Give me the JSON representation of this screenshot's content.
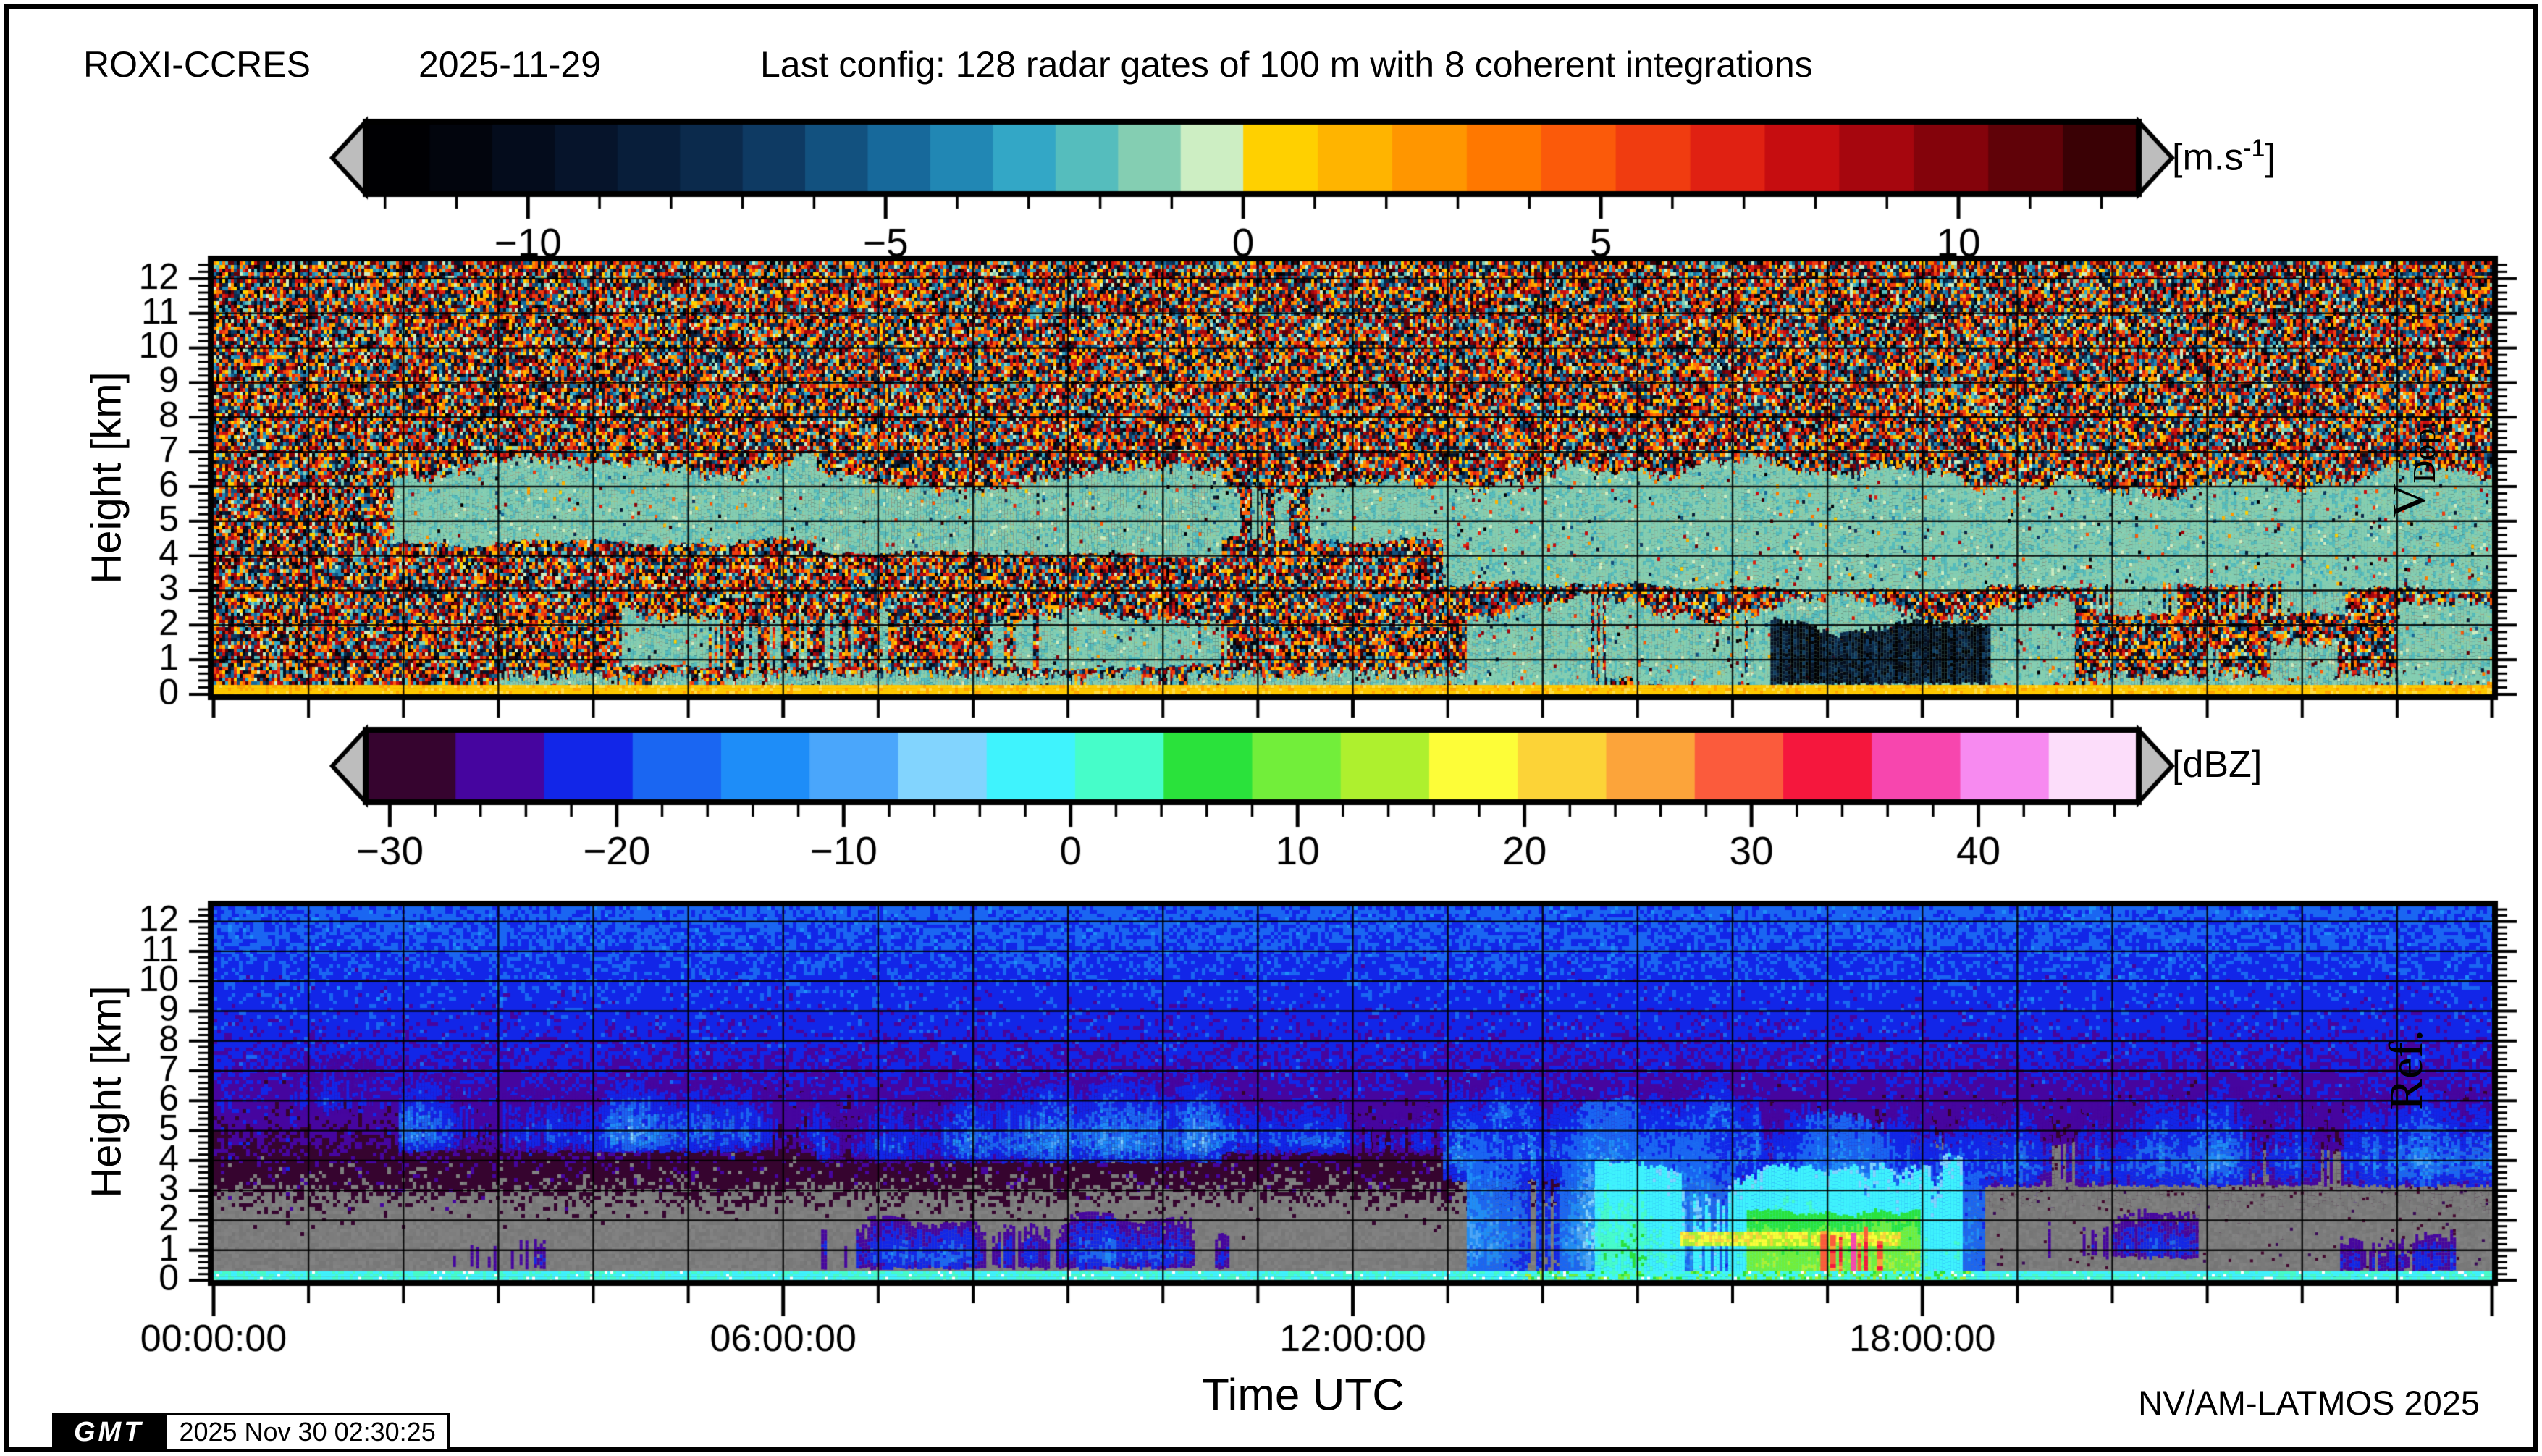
{
  "header": {
    "station": "ROXI-CCRES",
    "date": "2025-11-29",
    "config": "Last config: 128 radar gates of 100 m with 8 coherent integrations"
  },
  "footer": {
    "xlabel": "Time UTC",
    "credit": "NV/AM-LATMOS 2025",
    "logo": "GMT",
    "timestamp": "2025 Nov 30 02:30:25"
  },
  "x_axis": {
    "major_tick_hours": [
      0,
      6,
      12,
      18
    ],
    "tick_labels": [
      "00:00:00",
      "06:00:00",
      "12:00:00",
      "18:00:00"
    ],
    "minor_tick_step_hours": 1,
    "range_hours": [
      0,
      24
    ]
  },
  "chart_data": [
    {
      "type": "heatmap",
      "name": "doppler_velocity",
      "right_label_main": "V",
      "right_label_sub": "Dop.",
      "ylabel": "Height [km]",
      "y_range_km": [
        0,
        12.5
      ],
      "y_major_ticks": [
        0,
        1,
        2,
        3,
        4,
        5,
        6,
        7,
        8,
        9,
        10,
        11,
        12
      ],
      "y_minor_step_km": 0.2,
      "x_grid_step_hours": 1,
      "y_grid_step_km": 1,
      "colorbar": {
        "unit_prefix": "[m.s",
        "unit_sup": "-1",
        "unit_suffix": "]",
        "range": [
          -12.25,
          12.5
        ],
        "major_ticks": [
          -10,
          -5,
          0,
          5,
          10
        ],
        "minor_step": 1,
        "stops_negative": [
          "#000003",
          "#02050d",
          "#040c1c",
          "#06142b",
          "#081e3a",
          "#0b2a4c",
          "#0e3a63",
          "#12517f",
          "#17699b",
          "#2187b4",
          "#33a7c6",
          "#55bdbd",
          "#84ceb2",
          "#cdeec3"
        ],
        "stops_positive": [
          "#ffd000",
          "#ffb400",
          "#ff9600",
          "#ff7800",
          "#fb5a0a",
          "#f03c10",
          "#e02112",
          "#c60d10",
          "#a6060e",
          "#84030b",
          "#600208",
          "#3a0105"
        ]
      },
      "background": "uniform random Doppler noise spanning full velocity range",
      "cloud_velocity_range_ms": [
        -2.0,
        -0.85
      ],
      "surface_strip_color": "#ffc800",
      "features": [
        {
          "kind": "cloud",
          "t": [
            0.75,
            1.7
          ],
          "z": [
            3.9,
            8.2
          ],
          "density": 0.5,
          "spiky": 1
        },
        {
          "kind": "cloud",
          "t": [
            1.9,
            6.35
          ],
          "z": [
            4.3,
            7.05
          ],
          "density": 0.97
        },
        {
          "kind": "cloud",
          "t": [
            6.35,
            10.6
          ],
          "z": [
            3.95,
            6.7
          ],
          "density": 0.95
        },
        {
          "kind": "cloud",
          "t": [
            10.6,
            12.95
          ],
          "z": [
            4.4,
            6.4
          ],
          "density": 0.7
        },
        {
          "kind": "cloud",
          "t": [
            12.95,
            24
          ],
          "z": [
            2.95,
            6.9
          ],
          "density": 0.95
        },
        {
          "kind": "cloud",
          "t": [
            4.3,
            10.7
          ],
          "z": [
            0.75,
            2.5
          ],
          "density": 0.55
        },
        {
          "kind": "cloud",
          "t": [
            13.2,
            19.6
          ],
          "z": [
            0.3,
            2.9
          ],
          "density": 0.85
        },
        {
          "kind": "cloud",
          "t": [
            19.8,
            22.6
          ],
          "z": [
            2.3,
            3.6
          ],
          "density": 0.5
        },
        {
          "kind": "cloud",
          "t": [
            21.0,
            22.7
          ],
          "z": [
            0.45,
            1.6
          ],
          "density": 0.55
        },
        {
          "kind": "cloud",
          "t": [
            23.0,
            24
          ],
          "z": [
            0.3,
            2.8
          ],
          "density": 0.6
        },
        {
          "kind": "cloud",
          "t": [
            3.0,
            23.9
          ],
          "z": [
            0.27,
            0.62
          ],
          "density": 0.75
        },
        {
          "kind": "downdraft",
          "t": [
            16.4,
            18.7
          ],
          "z": [
            0.35,
            2.25
          ]
        },
        {
          "kind": "surface_strip",
          "t": [
            0,
            24
          ],
          "z": [
            0,
            0.27
          ]
        }
      ]
    },
    {
      "type": "heatmap",
      "name": "reflectivity",
      "right_label": "Ref.",
      "ylabel": "Height [km]",
      "y_range_km": [
        0,
        12.5
      ],
      "y_major_ticks": [
        0,
        1,
        2,
        3,
        4,
        5,
        6,
        7,
        8,
        9,
        10,
        11,
        12
      ],
      "y_minor_step_km": 0.2,
      "x_grid_step_hours": 1,
      "y_grid_step_km": 1,
      "colorbar": {
        "units": "[dBZ]",
        "range": [
          -31,
          47
        ],
        "major_ticks": [
          -30,
          -20,
          -10,
          0,
          10,
          20,
          30,
          40
        ],
        "minor_step": 2,
        "stops": [
          "#36042f",
          "#46059f",
          "#1226e8",
          "#1a66f2",
          "#1e8df8",
          "#4aa6fb",
          "#82d4fe",
          "#3ff3fd",
          "#46fdc9",
          "#2ae23b",
          "#72ee3a",
          "#aef02e",
          "#fdfd38",
          "#fcd337",
          "#fca43a",
          "#fb5b3c",
          "#f5173d",
          "#f746ae",
          "#f78af0",
          "#fcddfa"
        ]
      },
      "background": "range-dependent noise floor ~ -40.5 + 20*log10(height_km) dBZ; gray where below -31 dBZ",
      "surface_strip_color": "#3ff3fd",
      "features": [
        {
          "kind": "gray_extension",
          "t": [
            14.55,
            24
          ],
          "z": [
            0,
            4.6
          ]
        },
        {
          "kind": "cloud",
          "t": [
            0.85,
            1.65
          ],
          "z": [
            5.6,
            7.9
          ],
          "density": 0.35
        },
        {
          "kind": "low_cloud",
          "t": [
            3.9,
            4.7
          ],
          "z": [
            3.8,
            7.0
          ],
          "density": 0.22
        },
        {
          "kind": "cloud",
          "t": [
            1.95,
            6.35
          ],
          "z": [
            4.35,
            6.95
          ],
          "density": 0.8
        },
        {
          "kind": "cloud",
          "t": [
            6.35,
            10.6
          ],
          "z": [
            4.0,
            6.9
          ],
          "density": 0.85
        },
        {
          "kind": "cloud",
          "t": [
            10.6,
            12.95
          ],
          "z": [
            4.3,
            6.4
          ],
          "density": 0.55
        },
        {
          "kind": "cloud",
          "t": [
            12.95,
            16.3
          ],
          "z": [
            3.4,
            7.0
          ],
          "density": 0.9
        },
        {
          "kind": "cloud",
          "t": [
            16.3,
            18.6
          ],
          "z": [
            3.0,
            6.6
          ],
          "density": 0.85
        },
        {
          "kind": "cloud",
          "t": [
            18.6,
            24
          ],
          "z": [
            3.2,
            6.6
          ],
          "density": 0.75
        },
        {
          "kind": "low_cloud",
          "t": [
            6.4,
            10.7
          ],
          "z": [
            0.45,
            2.3
          ],
          "density": 0.65
        },
        {
          "kind": "low_cloud",
          "t": [
            2.4,
            3.5
          ],
          "z": [
            0.4,
            1.6
          ],
          "density": 0.25
        },
        {
          "kind": "precip_core",
          "t": [
            13.2,
            18.65
          ],
          "z": [
            0,
            6.2
          ],
          "density": 0.95
        },
        {
          "kind": "green_core",
          "t": [
            14.55,
            18.4
          ],
          "z": [
            0,
            4.3
          ],
          "density": 0.9
        },
        {
          "kind": "yellow_core",
          "t": [
            16.15,
            17.95
          ],
          "z": [
            0,
            2.7
          ],
          "density": 0.85
        },
        {
          "kind": "melting_band",
          "t": [
            15.45,
            17.75
          ],
          "z": [
            1.25,
            1.62
          ]
        },
        {
          "kind": "red_streaks",
          "t": [
            16.9,
            17.55
          ],
          "z": [
            0,
            2.05
          ]
        },
        {
          "kind": "low_cloud",
          "t": [
            19.2,
            20.9
          ],
          "z": [
            0.8,
            2.6
          ],
          "density": 0.45
        },
        {
          "kind": "low_cloud",
          "t": [
            22.4,
            23.6
          ],
          "z": [
            0.35,
            1.8
          ],
          "density": 0.5
        },
        {
          "kind": "surface_strip",
          "t": [
            0,
            24
          ],
          "z": [
            0,
            0.3
          ]
        }
      ]
    }
  ]
}
